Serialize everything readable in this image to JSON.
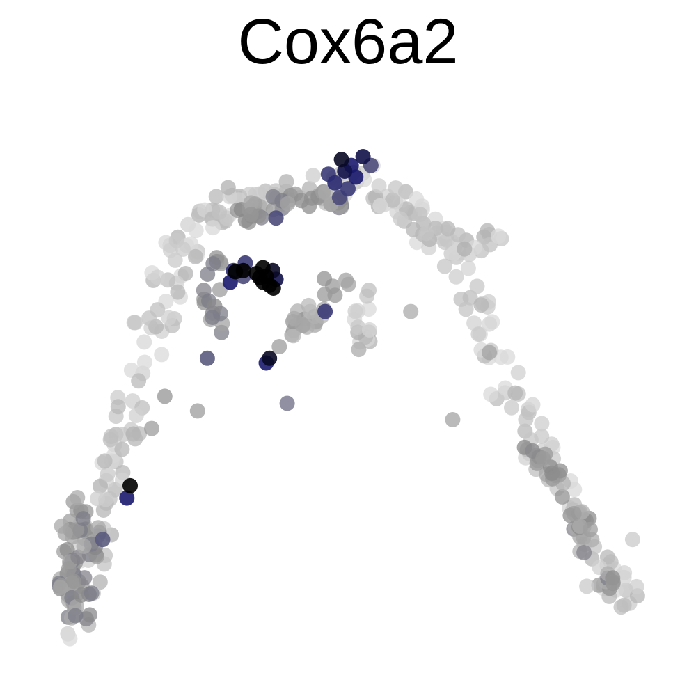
{
  "chart_data": {
    "type": "scatter",
    "title": "Cox6a2",
    "xlabel": "",
    "ylabel": "",
    "grid": false,
    "axes_visible": false,
    "legend": "none",
    "color_scale": {
      "low": "#dadada",
      "mid": "#8c8c8c",
      "high_blue": "#1a1a6e",
      "max": "#000000"
    },
    "xlim": [
      0,
      100
    ],
    "ylim": [
      0,
      100
    ],
    "backbone": [
      {
        "path": [
          [
            8,
            5
          ],
          [
            10,
            15
          ],
          [
            12,
            25
          ],
          [
            15,
            37
          ],
          [
            18,
            48
          ],
          [
            20,
            58
          ],
          [
            23,
            67
          ],
          [
            27,
            76
          ],
          [
            33,
            80
          ],
          [
            40,
            81
          ],
          [
            47,
            82
          ],
          [
            52,
            84
          ]
        ],
        "level": 0.12,
        "spread": 2.6,
        "count": 150
      },
      {
        "path": [
          [
            50,
            83
          ],
          [
            56,
            81
          ],
          [
            60,
            78
          ],
          [
            64,
            73
          ],
          [
            68,
            66
          ],
          [
            71,
            58
          ],
          [
            74,
            48
          ],
          [
            78,
            40
          ],
          [
            82,
            32
          ],
          [
            86,
            24
          ],
          [
            90,
            16
          ],
          [
            93,
            10
          ]
        ],
        "level": 0.1,
        "spread": 2.4,
        "count": 120
      },
      {
        "path": [
          [
            60,
            76
          ],
          [
            65,
            73
          ],
          [
            69,
            72
          ],
          [
            73,
            74
          ]
        ],
        "level": 0.15,
        "spread": 1.6,
        "count": 25
      },
      {
        "path": [
          [
            49,
            68
          ],
          [
            47,
            63
          ],
          [
            43,
            59
          ],
          [
            42,
            57
          ]
        ],
        "level": 0.35,
        "spread": 1.6,
        "count": 25
      },
      {
        "path": [
          [
            53,
            66
          ],
          [
            52,
            60
          ],
          [
            52,
            55
          ]
        ],
        "level": 0.15,
        "spread": 1.4,
        "count": 15
      },
      {
        "path": [
          [
            7,
            28
          ],
          [
            10,
            22
          ],
          [
            8,
            15
          ],
          [
            9,
            8
          ]
        ],
        "level": 0.45,
        "spread": 2.5,
        "count": 70
      },
      {
        "path": [
          [
            30,
            71
          ],
          [
            29,
            63
          ],
          [
            30,
            58
          ]
        ],
        "level": 0.5,
        "spread": 1.4,
        "count": 18
      },
      {
        "path": [
          [
            78,
            38
          ],
          [
            81,
            33
          ],
          [
            85,
            26
          ],
          [
            87,
            20
          ],
          [
            90,
            14
          ]
        ],
        "level": 0.4,
        "spread": 1.5,
        "count": 45
      },
      {
        "path": [
          [
            33,
            77
          ],
          [
            37,
            79
          ],
          [
            45,
            81
          ],
          [
            50,
            80
          ]
        ],
        "level": 0.45,
        "spread": 1.5,
        "count": 40
      }
    ],
    "points": [
      {
        "x": 49.0,
        "y": 87.0,
        "level": 0.95
      },
      {
        "x": 49.5,
        "y": 85.0,
        "level": 0.9
      },
      {
        "x": 50.5,
        "y": 86.0,
        "level": 0.85
      },
      {
        "x": 51.2,
        "y": 84.0,
        "level": 0.85
      },
      {
        "x": 52.3,
        "y": 87.5,
        "level": 0.9
      },
      {
        "x": 48.0,
        "y": 83.0,
        "level": 0.8
      },
      {
        "x": 47.0,
        "y": 84.5,
        "level": 0.75
      },
      {
        "x": 50.0,
        "y": 82.0,
        "level": 0.75
      },
      {
        "x": 48.7,
        "y": 80.5,
        "level": 0.7
      },
      {
        "x": 53.5,
        "y": 86.0,
        "level": 0.7
      },
      {
        "x": 39.0,
        "y": 77.0,
        "level": 0.7
      },
      {
        "x": 32.0,
        "y": 66.0,
        "level": 0.85
      },
      {
        "x": 32.5,
        "y": 68.0,
        "level": 0.8
      },
      {
        "x": 34.0,
        "y": 67.0,
        "level": 0.7
      },
      {
        "x": 34.3,
        "y": 69.3,
        "level": 0.75
      },
      {
        "x": 32.8,
        "y": 67.8,
        "level": 1.0
      },
      {
        "x": 34.0,
        "y": 68.0,
        "level": 1.0
      },
      {
        "x": 36.0,
        "y": 67.5,
        "level": 1.0
      },
      {
        "x": 37.0,
        "y": 68.5,
        "level": 1.0
      },
      {
        "x": 37.5,
        "y": 67.0,
        "level": 1.0
      },
      {
        "x": 38.5,
        "y": 68.0,
        "level": 0.95
      },
      {
        "x": 37.0,
        "y": 66.0,
        "level": 1.0
      },
      {
        "x": 38.0,
        "y": 65.5,
        "level": 1.0
      },
      {
        "x": 38.6,
        "y": 65.0,
        "level": 1.0
      },
      {
        "x": 36.5,
        "y": 66.8,
        "level": 1.0
      },
      {
        "x": 39.0,
        "y": 66.5,
        "level": 0.9
      },
      {
        "x": 46.5,
        "y": 61.0,
        "level": 0.75
      },
      {
        "x": 38.0,
        "y": 53.0,
        "level": 0.95
      },
      {
        "x": 37.5,
        "y": 52.2,
        "level": 0.85
      },
      {
        "x": 28.5,
        "y": 53.0,
        "level": 0.65
      },
      {
        "x": 40.7,
        "y": 45.3,
        "level": 0.6
      },
      {
        "x": 16.7,
        "y": 31.2,
        "level": 1.0
      },
      {
        "x": 16.2,
        "y": 29.1,
        "level": 0.85
      },
      {
        "x": 12.5,
        "y": 22.0,
        "level": 0.65
      },
      {
        "x": 59.6,
        "y": 61.0,
        "level": 0.3
      },
      {
        "x": 66.0,
        "y": 42.5,
        "level": 0.35
      },
      {
        "x": 27.0,
        "y": 44.0,
        "level": 0.4
      },
      {
        "x": 22.0,
        "y": 46.5,
        "level": 0.45
      },
      {
        "x": 20.0,
        "y": 41.0,
        "level": 0.4
      },
      {
        "x": 39.5,
        "y": 55.0,
        "level": 0.4
      },
      {
        "x": 71.6,
        "y": 54.0,
        "level": 0.35
      },
      {
        "x": 90.5,
        "y": 14.5,
        "level": 0.45
      },
      {
        "x": 93.5,
        "y": 22.0,
        "level": 0.1
      },
      {
        "x": 86.5,
        "y": 14.0,
        "level": 0.1
      }
    ]
  }
}
